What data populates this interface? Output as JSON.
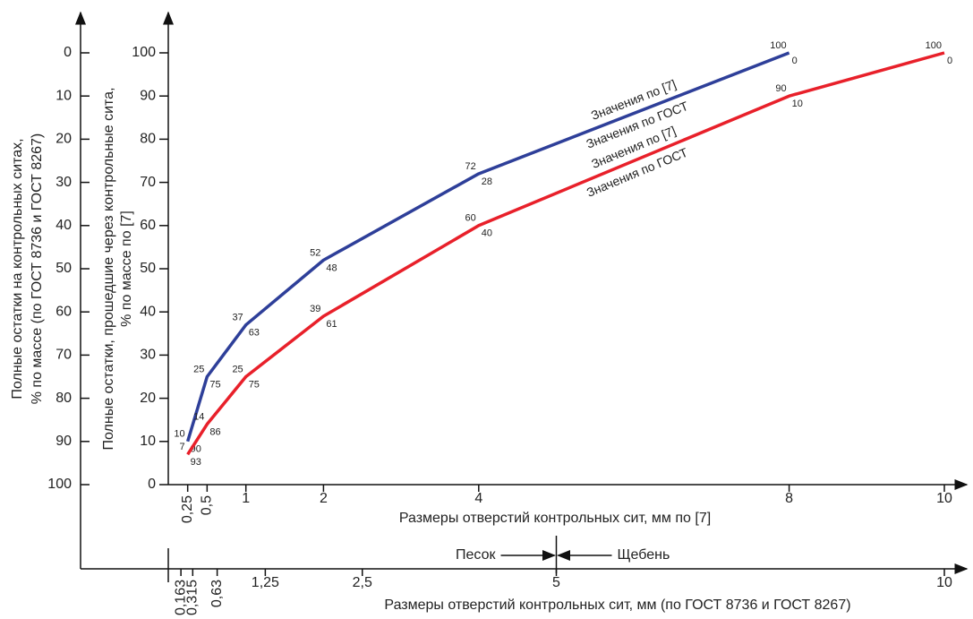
{
  "chart_data": {
    "type": "line",
    "xlabel": "Размеры отверстий контрольных сит, мм по [7]",
    "x2label": "Размеры отверстий контрольных сит, мм (по ГОСТ 8736 и ГОСТ 8267)",
    "ylabel": [
      "Полные остатки, прошедшие через контрольные сита,",
      "% по массе по [7]"
    ],
    "y2label": [
      "Полные остатки на контрольных ситах,",
      "% по массе (по ГОСТ 8736 и ГОСТ 8267)"
    ],
    "xlim": [
      0,
      10
    ],
    "xticks": [
      {
        "value": 0.25,
        "label": "0,25"
      },
      {
        "value": 0.5,
        "label": "0,5"
      },
      1,
      2,
      4,
      8,
      10
    ],
    "x2ticks": [
      {
        "value": 0.163,
        "label": "0,163"
      },
      {
        "value": 0.315,
        "label": "0,315"
      },
      {
        "value": 0.63,
        "label": "0,63"
      },
      {
        "value": 1.25,
        "label": "1,25"
      },
      {
        "value": 2.5,
        "label": "2,5"
      },
      5,
      10
    ],
    "ylim": [
      0,
      100
    ],
    "yticks": [
      0,
      10,
      20,
      30,
      40,
      50,
      60,
      70,
      80,
      90,
      100
    ],
    "y2lim": [
      100,
      0
    ],
    "y2ticks": [
      0,
      10,
      20,
      30,
      40,
      50,
      60,
      70,
      80,
      90,
      100
    ],
    "annotations": {
      "sand": "Песок",
      "gravel": "Щебень",
      "boundary": 5
    },
    "series": [
      {
        "labels": [
          "Значения по [7]",
          "Значения по ГОСТ"
        ],
        "color": "#2e3f99",
        "x": [
          0.25,
          0.5,
          1,
          2,
          4,
          8
        ],
        "values": [
          10,
          25,
          37,
          52,
          72,
          100
        ],
        "residues": [
          90,
          75,
          63,
          48,
          28,
          0
        ]
      },
      {
        "labels": [
          "Значения по [7]",
          "Значения по ГОСТ"
        ],
        "color": "#e8202a",
        "x": [
          0.25,
          0.5,
          1,
          2,
          4,
          8,
          10
        ],
        "values": [
          7,
          14,
          25,
          39,
          60,
          90,
          100
        ],
        "residues": [
          93,
          86,
          75,
          61,
          40,
          10,
          0
        ]
      }
    ]
  }
}
